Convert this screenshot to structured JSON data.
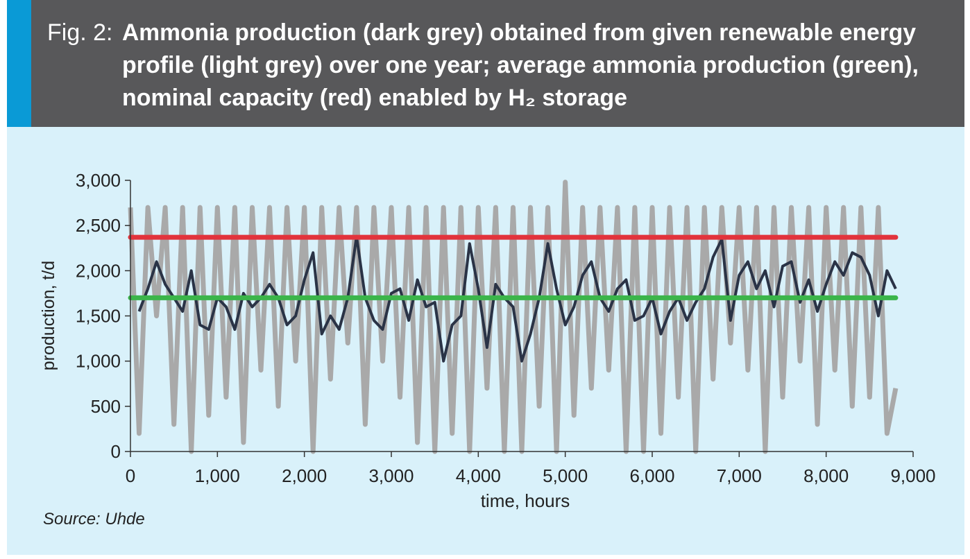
{
  "chart_data": {
    "type": "line",
    "figure_label": "Fig. 2:",
    "title": [
      "Ammonia production (dark grey) obtained from given renewable energy",
      "profile (light grey) over one year; average ammonia production (green),",
      "nominal capacity (red) enabled by H₂ storage"
    ],
    "xlabel": "time, hours",
    "ylabel": "production, t/d",
    "source": "Source: Uhde",
    "x": [
      0,
      100,
      200,
      300,
      400,
      500,
      600,
      700,
      800,
      900,
      1000,
      1100,
      1200,
      1300,
      1400,
      1500,
      1600,
      1700,
      1800,
      1900,
      2000,
      2100,
      2200,
      2300,
      2400,
      2500,
      2600,
      2700,
      2800,
      2900,
      3000,
      3100,
      3200,
      3300,
      3400,
      3500,
      3600,
      3700,
      3800,
      3900,
      4000,
      4100,
      4200,
      4300,
      4400,
      4500,
      4600,
      4700,
      4800,
      4900,
      5000,
      5100,
      5200,
      5300,
      5400,
      5500,
      5600,
      5700,
      5800,
      5900,
      6000,
      6100,
      6200,
      6300,
      6400,
      6500,
      6600,
      6700,
      6800,
      6900,
      7000,
      7100,
      7200,
      7300,
      7400,
      7500,
      7600,
      7700,
      7800,
      7900,
      8000,
      8100,
      8200,
      8300,
      8400,
      8500,
      8600,
      8700,
      8800
    ],
    "series": [
      {
        "color": "#a9a9a9",
        "width": 7,
        "values": [
          2700,
          200,
          2700,
          1500,
          2700,
          300,
          2700,
          0,
          2700,
          400,
          2700,
          600,
          2700,
          100,
          2700,
          900,
          2700,
          500,
          2700,
          1000,
          2700,
          0,
          2700,
          800,
          2700,
          1200,
          2700,
          300,
          2700,
          1000,
          2700,
          600,
          2700,
          100,
          2700,
          0,
          2700,
          200,
          2700,
          0,
          2700,
          700,
          2700,
          0,
          2700,
          0,
          2700,
          500,
          2700,
          0,
          2980,
          400,
          2700,
          700,
          2700,
          900,
          2700,
          0,
          2700,
          0,
          2700,
          200,
          2700,
          600,
          2700,
          0,
          2700,
          800,
          2700,
          1200,
          2700,
          900,
          2700,
          0,
          2700,
          600,
          2700,
          1000,
          2700,
          300,
          2700,
          900,
          2700,
          500,
          2700,
          600,
          2700,
          200,
          700
        ]
      },
      {
        "color": "#2a3346",
        "width": 4,
        "values": [
          null,
          1550,
          1800,
          2100,
          1850,
          1700,
          1550,
          2000,
          1400,
          1350,
          1700,
          1600,
          1350,
          1750,
          1600,
          1700,
          1850,
          1700,
          1400,
          1500,
          1900,
          2200,
          1300,
          1500,
          1350,
          1700,
          2380,
          1700,
          1450,
          1350,
          1750,
          1800,
          1450,
          1900,
          1600,
          1650,
          1000,
          1400,
          1500,
          2300,
          1800,
          1150,
          1850,
          1700,
          1600,
          1000,
          1300,
          1700,
          2300,
          1800,
          1400,
          1600,
          1950,
          2100,
          1700,
          1550,
          1800,
          1900,
          1450,
          1500,
          1700,
          1300,
          1550,
          1700,
          1450,
          1650,
          1800,
          2150,
          2350,
          1450,
          1950,
          2100,
          1800,
          2000,
          1600,
          2050,
          2100,
          1650,
          1900,
          1550,
          1850,
          2100,
          1950,
          2200,
          2150,
          1950,
          1500,
          2000,
          1800
        ]
      }
    ],
    "reference_lines": [
      {
        "value": 2370,
        "color": "#e2333c"
      },
      {
        "value": 1700,
        "color": "#3bb54a"
      }
    ],
    "xlim": [
      0,
      9000
    ],
    "xticks": [
      0,
      {
        "value": 1000,
        "label": "1,000"
      },
      {
        "value": 2000,
        "label": "2,000"
      },
      {
        "value": 3000,
        "label": "3,000"
      },
      {
        "value": 4000,
        "label": "4,000"
      },
      {
        "value": 5000,
        "label": "5,000"
      },
      {
        "value": 6000,
        "label": "6,000"
      },
      {
        "value": 7000,
        "label": "7,000"
      },
      {
        "value": 8000,
        "label": "8,000"
      },
      {
        "value": 9000,
        "label": "9,000"
      }
    ],
    "ylim": [
      0,
      3000
    ],
    "yticks": [
      0,
      500,
      {
        "value": 1000,
        "label": "1,000"
      },
      {
        "value": 1500,
        "label": "1,500"
      },
      {
        "value": 2000,
        "label": "2,000"
      },
      {
        "value": 2500,
        "label": "2,500"
      },
      {
        "value": 3000,
        "label": "3,000"
      }
    ]
  }
}
